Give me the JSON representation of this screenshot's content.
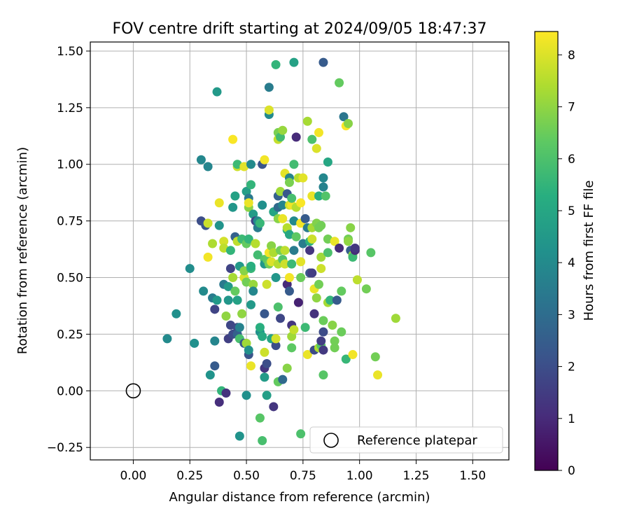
{
  "chart_data": {
    "type": "scatter",
    "title": "FOV centre drift starting at 2024/09/05 18:47:37",
    "xlabel": "Angular distance from reference (arcmin)",
    "ylabel": "Rotation from reference (arcmin)",
    "xlim": [
      -0.19,
      1.66
    ],
    "ylim": [
      -0.305,
      1.54
    ],
    "xticks": [
      "0.00",
      "0.25",
      "0.50",
      "0.75",
      "1.00",
      "1.25",
      "1.50"
    ],
    "xtick_values": [
      0,
      0.25,
      0.5,
      0.75,
      1.0,
      1.25,
      1.5
    ],
    "yticks": [
      "−0.25",
      "0.00",
      "0.25",
      "0.50",
      "0.75",
      "1.00",
      "1.25",
      "1.50"
    ],
    "ytick_values": [
      -0.25,
      0,
      0.25,
      0.5,
      0.75,
      1.0,
      1.25,
      1.5
    ],
    "grid": true,
    "colormap": "viridis",
    "colorbar": {
      "label": "Hours from first FF file",
      "range": [
        0,
        8.45
      ],
      "ticks": [
        "0",
        "1",
        "2",
        "3",
        "4",
        "5",
        "6",
        "7",
        "8"
      ],
      "tick_values": [
        0,
        1,
        2,
        3,
        4,
        5,
        6,
        7,
        8
      ]
    },
    "legend": {
      "placement": "lower-right",
      "entries": [
        {
          "label": "Reference platepar",
          "marker": "open-circle"
        }
      ]
    },
    "reference_point": [
      0,
      0
    ],
    "points": [
      [
        0.15,
        0.23,
        4.0
      ],
      [
        0.19,
        0.34,
        4.2
      ],
      [
        0.25,
        0.54,
        4.1
      ],
      [
        0.27,
        0.21,
        4.2
      ],
      [
        0.3,
        0.75,
        2.0
      ],
      [
        0.3,
        1.02,
        3.9
      ],
      [
        0.31,
        0.44,
        4.0
      ],
      [
        0.32,
        0.73,
        2.2
      ],
      [
        0.33,
        0.59,
        8.3
      ],
      [
        0.33,
        0.74,
        7.8
      ],
      [
        0.33,
        0.99,
        3.8
      ],
      [
        0.34,
        0.07,
        4.3
      ],
      [
        0.35,
        0.41,
        3.5
      ],
      [
        0.35,
        0.65,
        7.4
      ],
      [
        0.36,
        0.36,
        1.7
      ],
      [
        0.36,
        0.22,
        3.8
      ],
      [
        0.36,
        0.11,
        2.4
      ],
      [
        0.37,
        1.32,
        4.5
      ],
      [
        0.37,
        0.4,
        4.5
      ],
      [
        0.38,
        0.83,
        8.2
      ],
      [
        0.38,
        0.73,
        4.3
      ],
      [
        0.38,
        -0.05,
        1.1
      ],
      [
        0.39,
        0.0,
        5.5
      ],
      [
        0.4,
        0.66,
        7.9
      ],
      [
        0.4,
        0.63,
        7.6
      ],
      [
        0.4,
        0.47,
        3.4
      ],
      [
        0.41,
        0.33,
        7.0
      ],
      [
        0.41,
        -0.01,
        1.2
      ],
      [
        0.42,
        0.4,
        4.4
      ],
      [
        0.42,
        0.46,
        4.5
      ],
      [
        0.42,
        0.23,
        1.6
      ],
      [
        0.43,
        0.29,
        1.8
      ],
      [
        0.43,
        0.54,
        1.7
      ],
      [
        0.43,
        0.62,
        5.5
      ],
      [
        0.44,
        0.5,
        7.3
      ],
      [
        0.44,
        0.81,
        4.4
      ],
      [
        0.44,
        0.25,
        1.9
      ],
      [
        0.44,
        1.11,
        8.4
      ],
      [
        0.45,
        0.68,
        2.6
      ],
      [
        0.45,
        0.44,
        6.4
      ],
      [
        0.45,
        0.86,
        4.8
      ],
      [
        0.46,
        0.28,
        1.9
      ],
      [
        0.46,
        0.25,
        2.6
      ],
      [
        0.46,
        0.99,
        7.8
      ],
      [
        0.46,
        0.66,
        7.6
      ],
      [
        0.46,
        1.0,
        5.7
      ],
      [
        0.46,
        0.4,
        4.8
      ],
      [
        0.47,
        -0.2,
        4.3
      ],
      [
        0.47,
        0.55,
        4.5
      ],
      [
        0.47,
        0.23,
        5.9
      ],
      [
        0.47,
        0.28,
        3.7
      ],
      [
        0.48,
        0.67,
        5.7
      ],
      [
        0.48,
        0.34,
        7.0
      ],
      [
        0.49,
        0.99,
        8.1
      ],
      [
        0.49,
        0.5,
        8.0
      ],
      [
        0.49,
        0.21,
        2.3
      ],
      [
        0.49,
        0.53,
        6.9
      ],
      [
        0.5,
        -0.02,
        4.2
      ],
      [
        0.5,
        0.88,
        4.7
      ],
      [
        0.5,
        0.48,
        6.6
      ],
      [
        0.5,
        0.65,
        6.4
      ],
      [
        0.5,
        0.21,
        7.2
      ],
      [
        0.51,
        0.16,
        2.2
      ],
      [
        0.51,
        0.85,
        3.4
      ],
      [
        0.51,
        0.81,
        6.9
      ],
      [
        0.51,
        0.67,
        5.5
      ],
      [
        0.51,
        0.18,
        4.2
      ],
      [
        0.51,
        0.83,
        8.2
      ],
      [
        0.52,
        0.54,
        5.6
      ],
      [
        0.52,
        0.11,
        8.2
      ],
      [
        0.52,
        1.0,
        4.0
      ],
      [
        0.52,
        0.38,
        4.5
      ],
      [
        0.52,
        0.55,
        5.3
      ],
      [
        0.52,
        0.91,
        5.5
      ],
      [
        0.53,
        0.47,
        7.1
      ],
      [
        0.53,
        0.44,
        3.9
      ],
      [
        0.53,
        0.78,
        4.6
      ],
      [
        0.54,
        0.65,
        7.5
      ],
      [
        0.54,
        0.75,
        1.7
      ],
      [
        0.55,
        0.6,
        5.8
      ],
      [
        0.55,
        0.75,
        4.0
      ],
      [
        0.55,
        0.72,
        3.5
      ],
      [
        0.56,
        0.26,
        4.2
      ],
      [
        0.56,
        0.74,
        5.6
      ],
      [
        0.56,
        0.28,
        5.3
      ],
      [
        0.56,
        -0.12,
        6.2
      ],
      [
        0.57,
        1.0,
        2.2
      ],
      [
        0.57,
        -0.22,
        5.9
      ],
      [
        0.57,
        0.82,
        4.2
      ],
      [
        0.57,
        0.24,
        5.1
      ],
      [
        0.58,
        0.1,
        1.3
      ],
      [
        0.58,
        1.02,
        8.3
      ],
      [
        0.58,
        0.17,
        7.8
      ],
      [
        0.58,
        0.58,
        6.2
      ],
      [
        0.58,
        0.34,
        2.3
      ],
      [
        0.58,
        0.06,
        4.6
      ],
      [
        0.58,
        0.56,
        4.4
      ],
      [
        0.59,
        0.12,
        2.0
      ],
      [
        0.59,
        -0.02,
        4.7
      ],
      [
        0.59,
        0.58,
        6.3
      ],
      [
        0.59,
        0.47,
        7.8
      ],
      [
        0.6,
        1.22,
        4.0
      ],
      [
        0.6,
        1.34,
        3.5
      ],
      [
        0.6,
        1.24,
        8.0
      ],
      [
        0.6,
        0.61,
        8.3
      ],
      [
        0.6,
        0.56,
        6.6
      ],
      [
        0.61,
        0.64,
        7.6
      ],
      [
        0.61,
        0.23,
        4.9
      ],
      [
        0.61,
        0.57,
        8.0
      ],
      [
        0.61,
        0.64,
        6.9
      ],
      [
        0.62,
        -0.07,
        1.3
      ],
      [
        0.62,
        0.61,
        7.4
      ],
      [
        0.62,
        0.79,
        4.9
      ],
      [
        0.63,
        1.44,
        5.5
      ],
      [
        0.63,
        0.2,
        2.0
      ],
      [
        0.63,
        0.23,
        7.9
      ],
      [
        0.63,
        0.5,
        4.4
      ],
      [
        0.64,
        0.81,
        2.9
      ],
      [
        0.64,
        0.37,
        6.0
      ],
      [
        0.64,
        0.86,
        2.6
      ],
      [
        0.64,
        0.04,
        6.4
      ],
      [
        0.64,
        0.76,
        6.9
      ],
      [
        0.64,
        0.56,
        7.5
      ],
      [
        0.64,
        1.11,
        7.7
      ],
      [
        0.64,
        1.14,
        6.7
      ],
      [
        0.65,
        0.88,
        7.2
      ],
      [
        0.65,
        1.12,
        5.8
      ],
      [
        0.65,
        0.62,
        6.6
      ],
      [
        0.65,
        0.32,
        1.8
      ],
      [
        0.66,
        0.05,
        2.9
      ],
      [
        0.66,
        1.15,
        7.1
      ],
      [
        0.66,
        0.82,
        3.8
      ],
      [
        0.66,
        0.58,
        6.1
      ],
      [
        0.66,
        0.76,
        8.2
      ],
      [
        0.67,
        0.96,
        8.1
      ],
      [
        0.67,
        0.62,
        7.6
      ],
      [
        0.67,
        0.56,
        7.8
      ],
      [
        0.68,
        0.47,
        1.0
      ],
      [
        0.68,
        0.71,
        5.4
      ],
      [
        0.68,
        0.87,
        2.3
      ],
      [
        0.68,
        0.1,
        6.9
      ],
      [
        0.68,
        0.72,
        7.5
      ],
      [
        0.69,
        0.69,
        5.0
      ],
      [
        0.69,
        0.44,
        2.4
      ],
      [
        0.69,
        0.5,
        8.3
      ],
      [
        0.69,
        0.94,
        3.8
      ],
      [
        0.69,
        0.92,
        6.7
      ],
      [
        0.69,
        0.82,
        7.8
      ],
      [
        0.7,
        0.56,
        5.7
      ],
      [
        0.7,
        0.24,
        7.2
      ],
      [
        0.7,
        0.29,
        1.3
      ],
      [
        0.7,
        0.19,
        6.3
      ],
      [
        0.7,
        0.82,
        8.3
      ],
      [
        0.7,
        0.85,
        5.9
      ],
      [
        0.71,
        1.45,
        4.8
      ],
      [
        0.71,
        1.0,
        5.8
      ],
      [
        0.71,
        0.27,
        7.7
      ],
      [
        0.71,
        0.62,
        3.5
      ],
      [
        0.71,
        0.75,
        4.0
      ],
      [
        0.72,
        1.12,
        1.0
      ],
      [
        0.72,
        0.81,
        7.5
      ],
      [
        0.72,
        0.68,
        6.3
      ],
      [
        0.73,
        0.39,
        0.8
      ],
      [
        0.73,
        0.94,
        7.5
      ],
      [
        0.74,
        0.5,
        6.5
      ],
      [
        0.74,
        0.57,
        8.1
      ],
      [
        0.74,
        -0.19,
        6.0
      ],
      [
        0.74,
        0.74,
        8.3
      ],
      [
        0.74,
        0.83,
        8.4
      ],
      [
        0.75,
        0.65,
        3.5
      ],
      [
        0.75,
        0.94,
        8.1
      ],
      [
        0.76,
        0.76,
        2.4
      ],
      [
        0.76,
        0.28,
        5.7
      ],
      [
        0.77,
        1.19,
        7.3
      ],
      [
        0.77,
        0.16,
        8.2
      ],
      [
        0.77,
        0.72,
        3.5
      ],
      [
        0.78,
        0.66,
        5.4
      ],
      [
        0.78,
        0.52,
        2.2
      ],
      [
        0.78,
        0.62,
        1.3
      ],
      [
        0.79,
        1.11,
        6.0
      ],
      [
        0.79,
        0.72,
        7.3
      ],
      [
        0.79,
        0.67,
        7.8
      ],
      [
        0.79,
        0.86,
        8.2
      ],
      [
        0.79,
        0.52,
        1.5
      ],
      [
        0.8,
        0.34,
        1.2
      ],
      [
        0.8,
        0.45,
        8.2
      ],
      [
        0.8,
        0.18,
        1.9
      ],
      [
        0.81,
        0.74,
        6.8
      ],
      [
        0.81,
        1.07,
        8.0
      ],
      [
        0.81,
        0.41,
        7.0
      ],
      [
        0.82,
        0.19,
        7.4
      ],
      [
        0.82,
        1.14,
        8.3
      ],
      [
        0.82,
        0.86,
        5.3
      ],
      [
        0.82,
        0.47,
        6.6
      ],
      [
        0.82,
        0.72,
        6.6
      ],
      [
        0.83,
        0.54,
        7.8
      ],
      [
        0.83,
        0.2,
        6.2
      ],
      [
        0.83,
        0.22,
        1.5
      ],
      [
        0.83,
        0.59,
        7.2
      ],
      [
        0.83,
        0.73,
        6.6
      ],
      [
        0.84,
        1.45,
        2.4
      ],
      [
        0.84,
        0.94,
        3.9
      ],
      [
        0.84,
        0.26,
        1.9
      ],
      [
        0.84,
        0.07,
        6.2
      ],
      [
        0.84,
        0.31,
        6.5
      ],
      [
        0.84,
        0.18,
        1.4
      ],
      [
        0.84,
        0.9,
        3.7
      ],
      [
        0.85,
        0.86,
        6.1
      ],
      [
        0.86,
        0.67,
        6.6
      ],
      [
        0.86,
        0.39,
        7.3
      ],
      [
        0.86,
        1.01,
        5.0
      ],
      [
        0.86,
        0.61,
        6.0
      ],
      [
        0.87,
        0.4,
        5.5
      ],
      [
        0.88,
        0.29,
        6.9
      ],
      [
        0.89,
        0.66,
        8.2
      ],
      [
        0.89,
        0.19,
        6.6
      ],
      [
        0.89,
        0.22,
        6.6
      ],
      [
        0.9,
        0.4,
        2.4
      ],
      [
        0.91,
        0.63,
        1.0
      ],
      [
        0.91,
        1.36,
        6.4
      ],
      [
        0.92,
        0.26,
        6.5
      ],
      [
        0.92,
        0.44,
        6.4
      ],
      [
        0.93,
        1.21,
        3.3
      ],
      [
        0.94,
        1.17,
        8.4
      ],
      [
        0.94,
        0.14,
        5.6
      ],
      [
        0.95,
        1.18,
        6.9
      ],
      [
        0.95,
        0.67,
        6.6
      ],
      [
        0.95,
        0.66,
        7.0
      ],
      [
        0.96,
        0.72,
        6.9
      ],
      [
        0.96,
        0.62,
        2.5
      ],
      [
        0.97,
        0.6,
        7.0
      ],
      [
        0.97,
        0.16,
        8.3
      ],
      [
        0.97,
        0.59,
        5.7
      ],
      [
        0.98,
        0.62,
        1.0
      ],
      [
        0.98,
        0.63,
        1.3
      ],
      [
        0.99,
        0.49,
        7.6
      ],
      [
        1.03,
        0.45,
        6.6
      ],
      [
        1.05,
        0.61,
        6.2
      ],
      [
        1.07,
        0.15,
        6.6
      ],
      [
        1.08,
        0.07,
        8.2
      ],
      [
        1.16,
        0.32,
        7.2
      ]
    ]
  }
}
